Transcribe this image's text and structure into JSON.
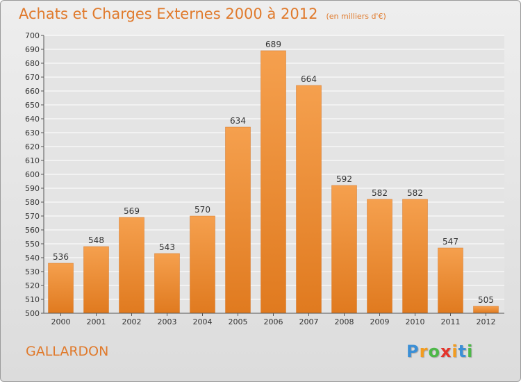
{
  "header": {
    "title": "Achats et Charges Externes 2000 à 2012",
    "subtitle": "(en milliers d'€)"
  },
  "footer": {
    "place": "GALLARDON",
    "logo_letters": [
      "P",
      "r",
      "o",
      "x",
      "i",
      "t",
      "i"
    ],
    "logo_colors": [
      "#3b8fd6",
      "#f39c1f",
      "#4db848",
      "#e5342b",
      "#f39c1f",
      "#3b8fd6",
      "#4db848"
    ]
  },
  "colors": {
    "bar_light": "#f5a04e",
    "bar_dark": "#e07a1f",
    "accent": "#e07a2c",
    "grid": "#ffffff",
    "plot_bg": "#e4e4e4"
  },
  "chart_data": {
    "type": "bar",
    "title": "Achats et Charges Externes 2000 à 2012",
    "subtitle": "(en milliers d'€)",
    "xlabel": "",
    "ylabel": "",
    "categories": [
      "2000",
      "2001",
      "2002",
      "2003",
      "2004",
      "2005",
      "2006",
      "2007",
      "2008",
      "2009",
      "2010",
      "2011",
      "2012"
    ],
    "values": [
      536,
      548,
      569,
      543,
      570,
      634,
      689,
      664,
      592,
      582,
      582,
      547,
      505
    ],
    "ylim": [
      500,
      700
    ],
    "ytick_step": 10,
    "grid": true,
    "legend": "none"
  }
}
